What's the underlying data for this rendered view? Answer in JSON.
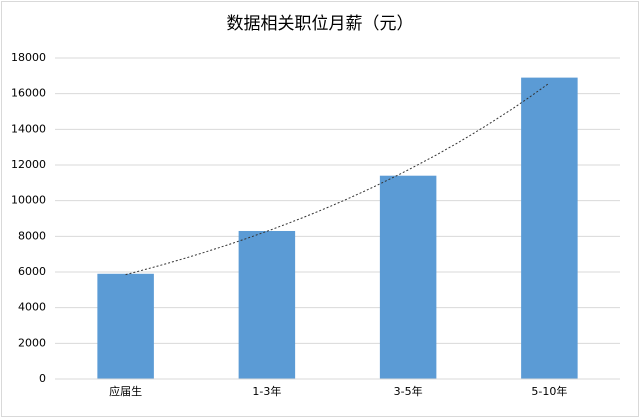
{
  "chart_data": {
    "type": "bar",
    "title": "数据相关职位月薪（元）",
    "categories": [
      "应届生",
      "1-3年",
      "3-5年",
      "5-10年"
    ],
    "values": [
      5900,
      8300,
      11400,
      16900
    ],
    "color": "#5b9bd5",
    "ylim": [
      0,
      18000
    ],
    "yticks": [
      0,
      2000,
      4000,
      6000,
      8000,
      10000,
      12000,
      14000,
      16000,
      18000
    ],
    "grid": true,
    "trendline": "exponential"
  }
}
